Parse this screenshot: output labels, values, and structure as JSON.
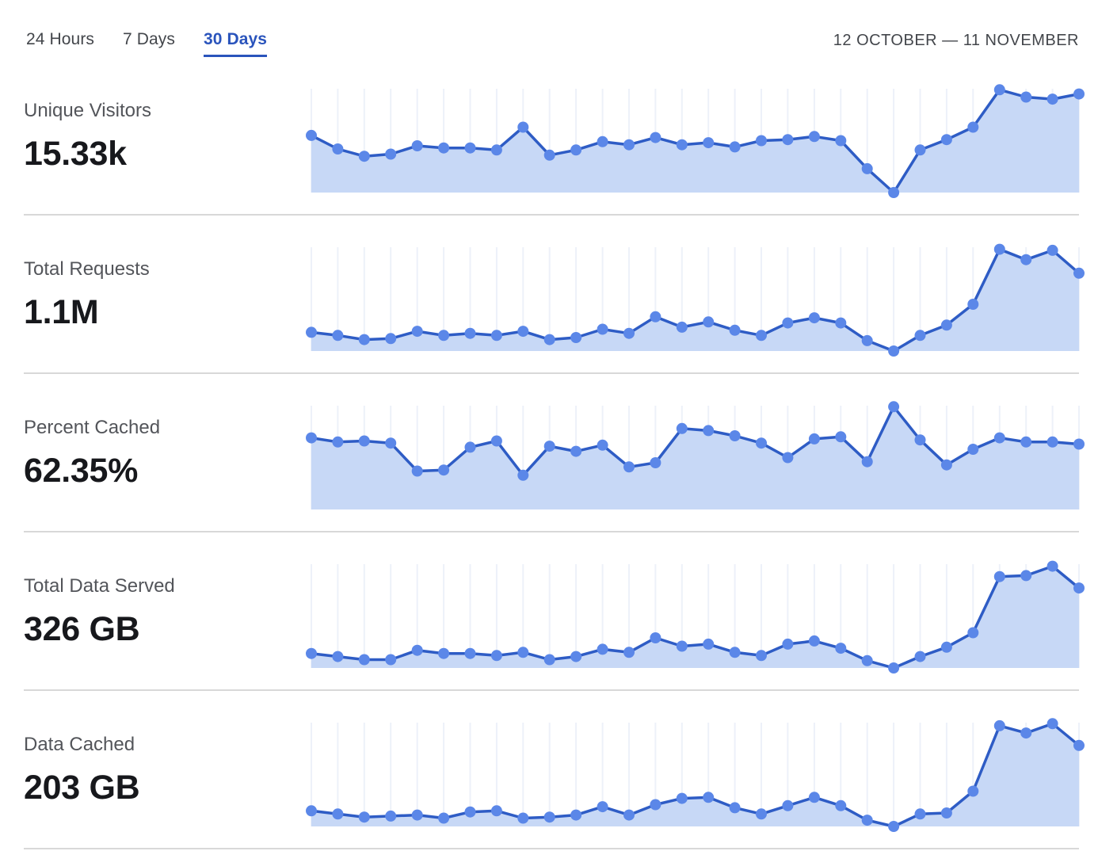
{
  "header": {
    "tabs": [
      "24 Hours",
      "7 Days",
      "30 Days"
    ],
    "active_tab": "30 Days",
    "date_range": "12 OCTOBER — 11 NOVEMBER"
  },
  "metrics": [
    {
      "label": "Unique Visitors",
      "value": "15.33k"
    },
    {
      "label": "Total Requests",
      "value": "1.1M"
    },
    {
      "label": "Percent Cached",
      "value": "62.35%"
    },
    {
      "label": "Total Data Served",
      "value": "326 GB"
    },
    {
      "label": "Data Cached",
      "value": "203 GB"
    }
  ],
  "chart_data": [
    {
      "type": "area",
      "title": "Unique Visitors",
      "total": "15.33k",
      "points": 30,
      "x_range": "12 October – 11 November, one point per day",
      "values": [
        55,
        42,
        35,
        37,
        45,
        43,
        43,
        41,
        63,
        36,
        41,
        49,
        46,
        53,
        46,
        48,
        44,
        50,
        51,
        54,
        50,
        23,
        0,
        41,
        51,
        63,
        99,
        92,
        90,
        95
      ],
      "ylim": [
        0,
        100
      ],
      "y_scale": "relative (percent of chart max; no y-axis labels shown)",
      "grid": "vertical line per day",
      "legend": "none",
      "markers": true
    },
    {
      "type": "area",
      "title": "Total Requests",
      "total": "1.1M",
      "points": 30,
      "x_range": "12 October – 11 November, one point per day",
      "values": [
        18,
        15,
        11,
        12,
        19,
        15,
        17,
        15,
        19,
        11,
        13,
        21,
        17,
        33,
        23,
        28,
        20,
        15,
        27,
        32,
        27,
        10,
        0,
        15,
        25,
        45,
        98,
        88,
        97,
        75
      ],
      "ylim": [
        0,
        100
      ],
      "y_scale": "relative (percent of chart max; no y-axis labels shown)",
      "grid": "vertical line per day",
      "legend": "none",
      "markers": true
    },
    {
      "type": "area",
      "title": "Percent Cached",
      "total": "62.35%",
      "points": 30,
      "x_range": "12 October – 11 November, one point per day",
      "values": [
        69,
        65,
        66,
        64,
        37,
        38,
        60,
        66,
        33,
        61,
        56,
        62,
        41,
        45,
        78,
        76,
        71,
        64,
        50,
        68,
        70,
        46,
        99,
        67,
        43,
        58,
        69,
        65,
        65,
        63
      ],
      "ylim": [
        0,
        100
      ],
      "y_scale": "relative (percent of chart max; no y-axis labels shown)",
      "grid": "vertical line per day",
      "legend": "none",
      "markers": true
    },
    {
      "type": "area",
      "title": "Total Data Served",
      "total": "326 GB",
      "points": 30,
      "x_range": "12 October – 11 November, one point per day",
      "values": [
        14,
        11,
        8,
        8,
        17,
        14,
        14,
        12,
        15,
        8,
        11,
        18,
        15,
        29,
        21,
        23,
        15,
        12,
        23,
        26,
        19,
        7,
        0,
        11,
        20,
        34,
        88,
        89,
        98,
        77
      ],
      "ylim": [
        0,
        100
      ],
      "y_scale": "relative (percent of chart max; no y-axis labels shown)",
      "grid": "vertical line per day",
      "legend": "none",
      "markers": true
    },
    {
      "type": "area",
      "title": "Data Cached",
      "total": "203 GB",
      "points": 30,
      "x_range": "12 October – 11 November, one point per day",
      "values": [
        15,
        12,
        9,
        10,
        11,
        8,
        14,
        15,
        8,
        9,
        11,
        19,
        11,
        21,
        27,
        28,
        18,
        12,
        20,
        28,
        20,
        6,
        0,
        12,
        13,
        34,
        97,
        90,
        99,
        78
      ],
      "ylim": [
        0,
        100
      ],
      "y_scale": "relative (percent of chart max; no y-axis labels shown)",
      "grid": "vertical line per day",
      "legend": "none",
      "markers": true
    }
  ],
  "colors": {
    "chart_line": "#2e5cc5",
    "chart_dot": "#5b87e8",
    "chart_fill": "#c7d8f6",
    "chart_gridline": "#edf1f9",
    "divider": "#d8d8d8",
    "tab_active": "#2a54bc",
    "text_primary": "#17181c",
    "text_secondary": "#53555a"
  }
}
